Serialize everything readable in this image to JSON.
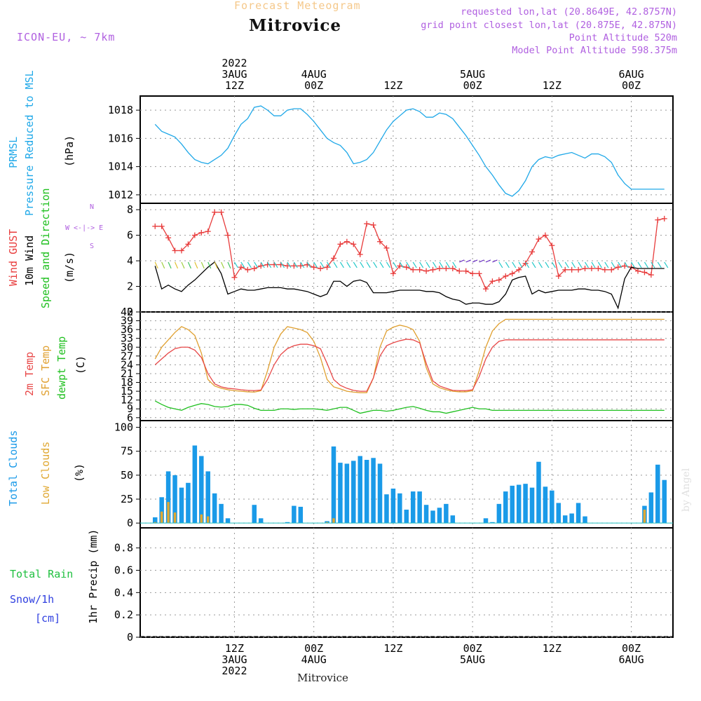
{
  "header": {
    "subtitle": "Forecast Meteogram",
    "title": "Mitrovice",
    "model": "ICON-EU, ~ 7km",
    "requested": "requested lon,lat (20.8649E, 42.8757N)",
    "grid_point": "grid point closest lon,lat (20.875E, 42.875N)",
    "point_altitude": "Point Altitude 520m",
    "model_altitude": "Model Point Altitude 598.375m"
  },
  "credit": "by Angel",
  "footer_label": "Mitrovice",
  "colors": {
    "pressure": "#1fa8e8",
    "gust": "#e83c3c",
    "wind10m": "#000000",
    "temp2m": "#e84848",
    "sfc": "#e0a030",
    "dewpt": "#20c020",
    "total_clouds": "#1a9ae8",
    "low_clouds": "#e0a832",
    "rain": "#20c040",
    "snow": "#3040e0",
    "compass": "#b060e0"
  },
  "time_axis": {
    "top": [
      {
        "label": "2022\n3AUG\n12Z",
        "h": 12
      },
      {
        "label": "4AUG\n00Z",
        "h": 24
      },
      {
        "label": "12Z",
        "h": 36
      },
      {
        "label": "5AUG\n00Z",
        "h": 48
      },
      {
        "label": "12Z",
        "h": 60
      },
      {
        "label": "6AUG\n00Z",
        "h": 72
      }
    ],
    "bottom": [
      {
        "label": "12Z\n3AUG\n2022",
        "h": 12
      },
      {
        "label": "00Z\n4AUG",
        "h": 24
      },
      {
        "label": "12Z",
        "h": 36
      },
      {
        "label": "00Z\n5AUG",
        "h": 48
      },
      {
        "label": "12Z",
        "h": 60
      },
      {
        "label": "00Z\n6AUG",
        "h": 72
      }
    ]
  },
  "panels": {
    "pressure": {
      "labels": [
        "PRMSL",
        "Pressure Reduced to MSL",
        "(hPa)"
      ]
    },
    "wind": {
      "labels": [
        "Wind GUST",
        "10m Wind",
        "Speed and Direction",
        "(m/s)"
      ],
      "compass": [
        "N",
        "W <-|-> E",
        "S"
      ]
    },
    "temp": {
      "labels": [
        "2m Temp",
        "SFC Temp",
        "dewpt Temp",
        "(C)"
      ]
    },
    "clouds": {
      "labels": [
        "Total Clouds",
        "Low Clouds",
        "(%)"
      ]
    },
    "precip": {
      "labels": [
        "Total Rain",
        "Snow/1h",
        "[cm]",
        "1hr Precip (mm)"
      ]
    }
  },
  "chart_data": [
    {
      "type": "line",
      "title": "PRMSL Pressure Reduced to MSL",
      "ylabel": "(hPa)",
      "ylim": [
        1011.4,
        1019
      ],
      "yticks": [
        1012,
        1014,
        1016,
        1018
      ],
      "x_hours": [
        0,
        1,
        2,
        3,
        4,
        5,
        6,
        7,
        8,
        9,
        10,
        11,
        12,
        13,
        14,
        15,
        16,
        17,
        18,
        19,
        20,
        21,
        22,
        23,
        24,
        25,
        26,
        27,
        28,
        29,
        30,
        31,
        32,
        33,
        34,
        35,
        36,
        37,
        38,
        39,
        40,
        41,
        42,
        43,
        44,
        45,
        46,
        47,
        48,
        49,
        50,
        51,
        52,
        53,
        54,
        55,
        56,
        57,
        58,
        59,
        60,
        61,
        62,
        63,
        64,
        65,
        66,
        67,
        68,
        69,
        70,
        71,
        72,
        73,
        74,
        75,
        76,
        77
      ],
      "series": [
        {
          "values": [
            1017.0,
            1016.5,
            1016.3,
            1016.1,
            1015.6,
            1015.0,
            1014.5,
            1014.3,
            1014.2,
            1014.5,
            1014.8,
            1015.3,
            1016.2,
            1017.0,
            1017.4,
            1018.2,
            1018.3,
            1018.0,
            1017.6,
            1017.6,
            1018.0,
            1018.1,
            1018.1,
            1017.7,
            1017.2,
            1016.6,
            1016.0,
            1015.7,
            1015.5,
            1015.0,
            1014.2,
            1014.3,
            1014.5,
            1015.0,
            1015.8,
            1016.6,
            1017.2,
            1017.6,
            1018.0,
            1018.1,
            1017.9,
            1017.5,
            1017.5,
            1017.8,
            1017.7,
            1017.4,
            1016.8,
            1016.2,
            1015.5,
            1014.8,
            1014.0,
            1013.4,
            1012.7,
            1012.1,
            1011.9,
            1012.3,
            1013.0,
            1014.0,
            1014.5,
            1014.7,
            1014.6,
            1014.8,
            1014.9,
            1015.0,
            1014.8,
            1014.6,
            1014.9,
            1014.9,
            1014.7,
            1014.3,
            1013.4,
            1012.8,
            1012.4,
            1012.4,
            1012.4,
            1012.4,
            1012.4,
            1012.4
          ]
        }
      ]
    },
    {
      "type": "line",
      "title": "Wind GUST / 10m Wind Speed and Direction",
      "ylabel": "(m/s)",
      "ylim": [
        0,
        8.5
      ],
      "yticks": [
        0,
        2,
        4,
        6,
        8
      ],
      "x_hours": [
        0,
        1,
        2,
        3,
        4,
        5,
        6,
        7,
        8,
        9,
        10,
        11,
        12,
        13,
        14,
        15,
        16,
        17,
        18,
        19,
        20,
        21,
        22,
        23,
        24,
        25,
        26,
        27,
        28,
        29,
        30,
        31,
        32,
        33,
        34,
        35,
        36,
        37,
        38,
        39,
        40,
        41,
        42,
        43,
        44,
        45,
        46,
        47,
        48,
        49,
        50,
        51,
        52,
        53,
        54,
        55,
        56,
        57,
        58,
        59,
        60,
        61,
        62,
        63,
        64,
        65,
        66,
        67,
        68,
        69,
        70,
        71,
        72,
        73,
        74,
        75,
        76,
        77
      ],
      "series": [
        {
          "name": "Wind GUST",
          "values": [
            6.7,
            6.7,
            5.8,
            4.8,
            4.8,
            5.3,
            6.0,
            6.2,
            6.3,
            7.8,
            7.8,
            6.0,
            2.7,
            3.5,
            3.3,
            3.4,
            3.6,
            3.7,
            3.7,
            3.7,
            3.6,
            3.6,
            3.6,
            3.7,
            3.5,
            3.4,
            3.5,
            4.2,
            5.3,
            5.5,
            5.3,
            4.5,
            6.9,
            6.8,
            5.5,
            5.0,
            3.0,
            3.6,
            3.5,
            3.3,
            3.3,
            3.2,
            3.3,
            3.4,
            3.4,
            3.4,
            3.2,
            3.2,
            3.0,
            3.0,
            1.8,
            2.4,
            2.5,
            2.8,
            3.0,
            3.3,
            3.8,
            4.7,
            5.7,
            6.0,
            5.2,
            2.8,
            3.3,
            3.3,
            3.3,
            3.4,
            3.4,
            3.4,
            3.3,
            3.3,
            3.5,
            3.6,
            3.5,
            3.2,
            3.1,
            2.9,
            7.2,
            7.3
          ]
        },
        {
          "name": "10m Wind",
          "values": [
            3.6,
            1.8,
            2.1,
            1.8,
            1.6,
            2.1,
            2.5,
            3.0,
            3.5,
            3.9,
            3.0,
            1.4,
            1.6,
            1.8,
            1.7,
            1.7,
            1.8,
            1.9,
            1.9,
            1.9,
            1.8,
            1.8,
            1.7,
            1.6,
            1.4,
            1.2,
            1.4,
            2.4,
            2.4,
            2.0,
            2.4,
            2.5,
            2.3,
            1.5,
            1.5,
            1.5,
            1.6,
            1.7,
            1.7,
            1.7,
            1.7,
            1.6,
            1.6,
            1.5,
            1.2,
            1.0,
            0.9,
            0.6,
            0.7,
            0.7,
            0.6,
            0.6,
            0.8,
            1.4,
            2.5,
            2.7,
            2.8,
            1.4,
            1.7,
            1.5,
            1.6,
            1.7,
            1.7,
            1.7,
            1.8,
            1.8,
            1.7,
            1.7,
            1.6,
            1.4,
            0.3,
            2.6,
            3.5,
            3.4,
            3.4,
            3.4,
            3.4,
            3.4
          ]
        }
      ]
    },
    {
      "type": "line",
      "title": "2m Temp / SFC Temp / dewpt Temp",
      "ylabel": "(C)",
      "ylim": [
        5,
        42
      ],
      "yticks": [
        6,
        9,
        12,
        15,
        18,
        21,
        24,
        27,
        30,
        33,
        36,
        39,
        42
      ],
      "x_hours": [
        0,
        1,
        2,
        3,
        4,
        5,
        6,
        7,
        8,
        9,
        10,
        11,
        12,
        13,
        14,
        15,
        16,
        17,
        18,
        19,
        20,
        21,
        22,
        23,
        24,
        25,
        26,
        27,
        28,
        29,
        30,
        31,
        32,
        33,
        34,
        35,
        36,
        37,
        38,
        39,
        40,
        41,
        42,
        43,
        44,
        45,
        46,
        47,
        48,
        49,
        50,
        51,
        52,
        53,
        54,
        55,
        56,
        57,
        58,
        59,
        60,
        61,
        62,
        63,
        64,
        65,
        66,
        67,
        68,
        69,
        70,
        71,
        72,
        73,
        74,
        75,
        76,
        77
      ],
      "series": [
        {
          "name": "2m Temp",
          "values": [
            24,
            26,
            28,
            29.5,
            30,
            30,
            29,
            26.5,
            21,
            17.5,
            16.5,
            16,
            15.8,
            15.5,
            15.3,
            15.2,
            15.4,
            19,
            24,
            27.5,
            29.5,
            30.5,
            31,
            31,
            30.5,
            29.5,
            24.5,
            19,
            17,
            16,
            15.3,
            15,
            15,
            19.5,
            27,
            30.5,
            31.5,
            32.2,
            32.7,
            32.5,
            31.5,
            24.5,
            18.5,
            16.8,
            16,
            15.3,
            15.2,
            15.2,
            15.5,
            20,
            26,
            30,
            32,
            32.5,
            32.5,
            32.5,
            32.5,
            32.5,
            32.5,
            32.5,
            32.5,
            32.5,
            32.5,
            32.5,
            32.5,
            32.5,
            32.5,
            32.5,
            32.5,
            32.5,
            32.5,
            32.5,
            32.5,
            32.5,
            32.5,
            32.5,
            32.5,
            32.5
          ]
        },
        {
          "name": "SFC Temp",
          "values": [
            26,
            30,
            32.5,
            35,
            37,
            36,
            34,
            28,
            19,
            16.8,
            16,
            15.5,
            15.2,
            15,
            14.8,
            14.7,
            15.2,
            22,
            30,
            34.5,
            37,
            36.5,
            36,
            35,
            32,
            26.5,
            19,
            16.5,
            15.8,
            15,
            14.7,
            14.5,
            14.5,
            19.5,
            30,
            35.5,
            36.8,
            37.5,
            37,
            36,
            32,
            23,
            17.5,
            16.2,
            15.5,
            15,
            14.8,
            14.8,
            15.2,
            22,
            30,
            35.5,
            38,
            39.5,
            39.5,
            39.5,
            39.5,
            39.5,
            39.5,
            39.5,
            39.5,
            39.5,
            39.5,
            39.5,
            39.5,
            39.5,
            39.5,
            39.5,
            39.5,
            39.5,
            39.5,
            39.5,
            39.5,
            39.5,
            39.5,
            39.5,
            39.5,
            39.5
          ]
        },
        {
          "name": "dewpt Temp",
          "values": [
            11.7,
            10.5,
            9.5,
            9,
            8.5,
            9.5,
            10.2,
            10.8,
            10.5,
            9.8,
            9.6,
            9.8,
            10.5,
            10.5,
            10.2,
            9.2,
            8.5,
            8.5,
            8.5,
            9,
            9,
            8.8,
            9,
            9,
            9,
            8.8,
            8.5,
            9,
            9.5,
            9.5,
            8.5,
            7.5,
            8,
            8.5,
            8.5,
            8.2,
            8.5,
            9,
            9.5,
            9.8,
            9.2,
            8.5,
            8,
            8,
            7.5,
            8,
            8.5,
            9,
            9.5,
            9,
            9,
            8.5,
            8.5,
            8.5,
            8.5,
            8.5,
            8.5,
            8.5,
            8.5,
            8.5,
            8.5,
            8.5,
            8.5,
            8.5,
            8.5,
            8.5,
            8.5,
            8.5,
            8.5,
            8.5,
            8.5,
            8.5,
            8.5,
            8.5,
            8.5,
            8.5,
            8.5,
            8.5
          ]
        }
      ]
    },
    {
      "type": "bar",
      "title": "Total Clouds / Low Clouds",
      "ylabel": "(%)",
      "ylim": [
        -5,
        107
      ],
      "yticks": [
        0,
        25,
        50,
        75,
        100
      ],
      "x_hours": [
        0,
        1,
        2,
        3,
        4,
        5,
        6,
        7,
        8,
        9,
        10,
        11,
        12,
        13,
        14,
        15,
        16,
        17,
        18,
        19,
        20,
        21,
        22,
        23,
        24,
        25,
        26,
        27,
        28,
        29,
        30,
        31,
        32,
        33,
        34,
        35,
        36,
        37,
        38,
        39,
        40,
        41,
        42,
        43,
        44,
        45,
        46,
        47,
        48,
        49,
        50,
        51,
        52,
        53,
        54,
        55,
        56,
        57,
        58,
        59,
        60,
        61,
        62,
        63,
        64,
        65,
        66,
        67,
        68,
        69,
        70,
        71,
        72,
        73,
        74,
        75,
        76,
        77
      ],
      "series": [
        {
          "name": "Total Clouds",
          "values": [
            6,
            27,
            54,
            50,
            37,
            42,
            81,
            70,
            54,
            31,
            20,
            5,
            0,
            0,
            0,
            19,
            5,
            0,
            0,
            0,
            1,
            18,
            17,
            0,
            0,
            0,
            2,
            80,
            63,
            62,
            65,
            70,
            66,
            68,
            62,
            30,
            36,
            31,
            14,
            33,
            33,
            19,
            13,
            16,
            20,
            8,
            0,
            0,
            0,
            0,
            5,
            1,
            20,
            33,
            39,
            40,
            41,
            37,
            64,
            38,
            34,
            21,
            8,
            10,
            21,
            7,
            0,
            0,
            0,
            0,
            0,
            0,
            0,
            0,
            18,
            32,
            61,
            45
          ]
        },
        {
          "name": "Low Clouds",
          "values": [
            1,
            12,
            22,
            11,
            0,
            0,
            0,
            9,
            7,
            0,
            0,
            0,
            0,
            0,
            0,
            0,
            0,
            0,
            0,
            0,
            0,
            0,
            0,
            0,
            0,
            0,
            1,
            5,
            0,
            0,
            0,
            0,
            0,
            0,
            0,
            0,
            0,
            0,
            0,
            0,
            0,
            0,
            0,
            0,
            0,
            0,
            0,
            0,
            0,
            0,
            0,
            0,
            0,
            0,
            0,
            0,
            0,
            0,
            0,
            0,
            0,
            0,
            0,
            0,
            0,
            0,
            0,
            0,
            0,
            0,
            0,
            0,
            0,
            0,
            14,
            0,
            0,
            0
          ]
        }
      ]
    },
    {
      "type": "bar",
      "title": "1hr Precip",
      "ylabel": "1hr Precip (mm)",
      "ylim": [
        0,
        0.98
      ],
      "yticks": [
        0,
        0.2,
        0.4,
        0.6,
        0.8
      ],
      "ytick_labels": [
        "0",
        "0.2",
        "0.4",
        "0.6",
        "0.8"
      ],
      "series": [
        {
          "name": "Total Rain",
          "values": []
        },
        {
          "name": "Snow/1h",
          "values": []
        }
      ]
    }
  ]
}
